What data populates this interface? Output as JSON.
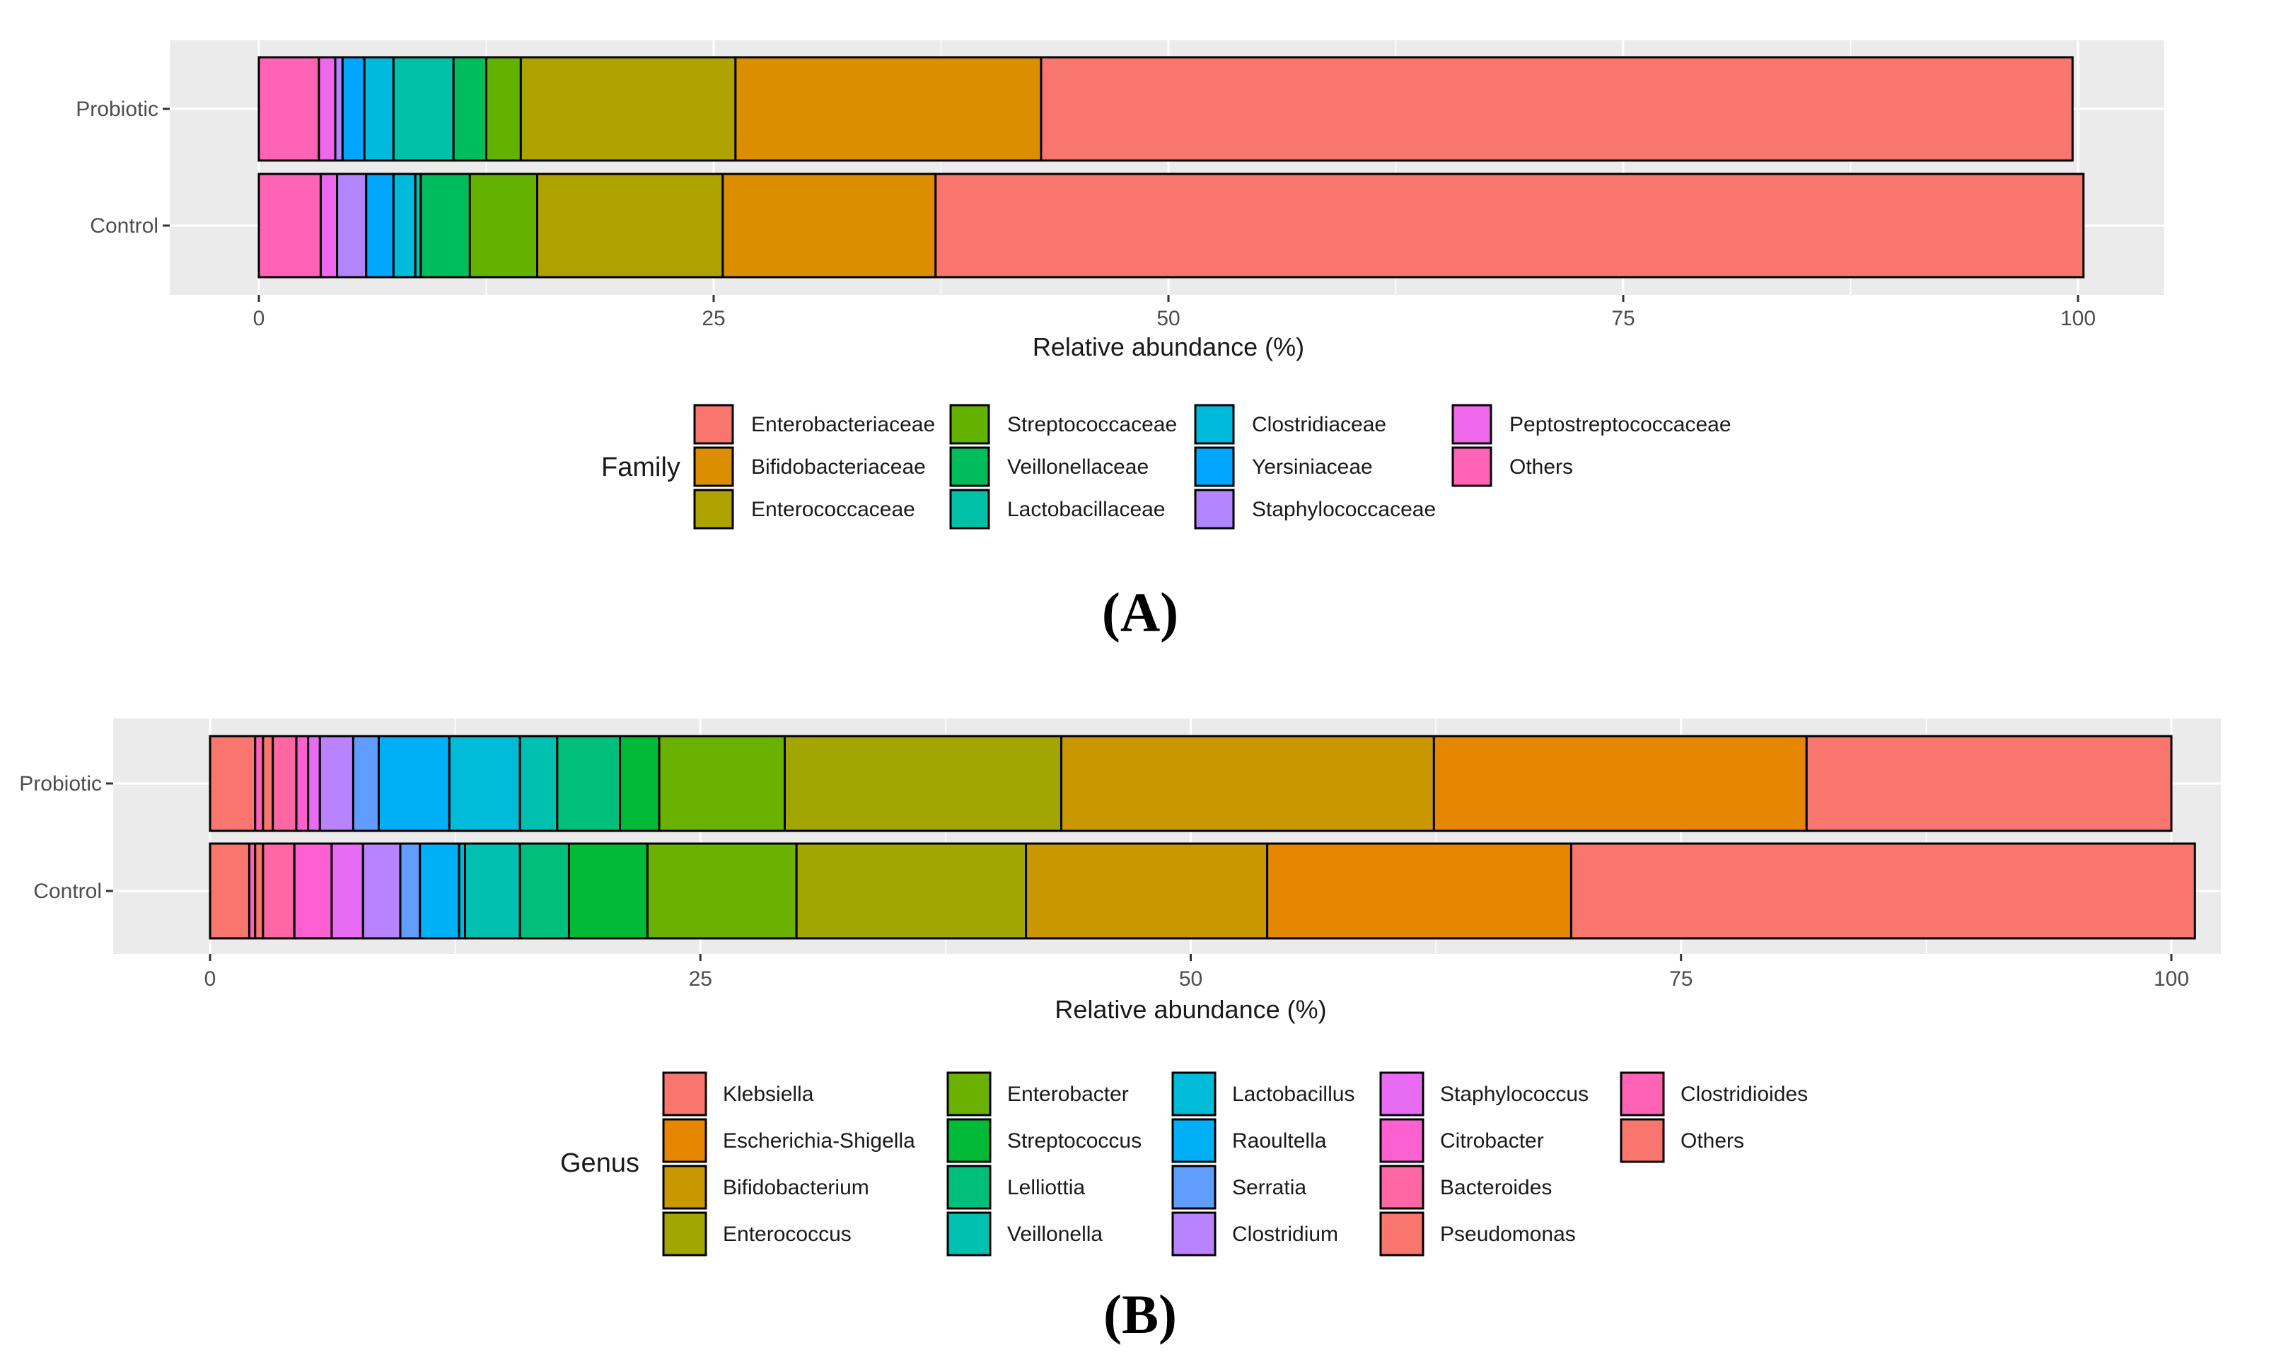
{
  "chart_data": [
    {
      "type": "bar",
      "orientation": "horizontal",
      "stacked": true,
      "panel_label": "(A)",
      "categories": [
        "Probiotic",
        "Control"
      ],
      "xlabel": "Relative abundance (%)",
      "ylabel": "",
      "xlim": [
        0,
        100
      ],
      "xticks": [
        "0",
        "25",
        "50",
        "75",
        "100"
      ],
      "grid": true,
      "legend_title": "Family",
      "legend_position": "bottom",
      "series": [
        {
          "name": "Enterobacteriaceae",
          "color": "#F8766D",
          "values": [
            56.7,
            63.1
          ]
        },
        {
          "name": "Bifidobacteriaceae",
          "color": "#DB8E00",
          "values": [
            16.8,
            11.7
          ]
        },
        {
          "name": "Enterococcaceae",
          "color": "#AEA200",
          "values": [
            11.8,
            10.2
          ]
        },
        {
          "name": "Streptococcaceae",
          "color": "#64B200",
          "values": [
            1.9,
            3.7
          ]
        },
        {
          "name": "Veillonellaceae",
          "color": "#00BD5C",
          "values": [
            1.8,
            2.7
          ]
        },
        {
          "name": "Lactobacillaceae",
          "color": "#00C1A7",
          "values": [
            3.3,
            0.3
          ]
        },
        {
          "name": "Clostridiaceae",
          "color": "#00BADE",
          "values": [
            1.6,
            1.2
          ]
        },
        {
          "name": "Yersiniaceae",
          "color": "#00A6FF",
          "values": [
            1.2,
            1.5
          ]
        },
        {
          "name": "Staphylococcaceae",
          "color": "#B385FF",
          "values": [
            0.4,
            1.6
          ]
        },
        {
          "name": "Peptostreptococcaceae",
          "color": "#EF67EB",
          "values": [
            0.9,
            0.9
          ]
        },
        {
          "name": "Others",
          "color": "#FF63B6",
          "values": [
            3.3,
            3.4
          ]
        }
      ]
    },
    {
      "type": "bar",
      "orientation": "horizontal",
      "stacked": true,
      "panel_label": "(B)",
      "categories": [
        "Probiotic",
        "Control"
      ],
      "xlabel": "Relative abundance (%)",
      "ylabel": "",
      "xlim": [
        0,
        100
      ],
      "xticks": [
        "0",
        "25",
        "50",
        "75",
        "100"
      ],
      "grid": true,
      "legend_title": "Genus",
      "legend_position": "bottom",
      "series": [
        {
          "name": "Klebsiella",
          "color": "#F8766D",
          "values": [
            18.6,
            31.8
          ]
        },
        {
          "name": "Escherichia-Shigella",
          "color": "#E58700",
          "values": [
            19.0,
            15.5
          ]
        },
        {
          "name": "Bifidobacterium",
          "color": "#C99800",
          "values": [
            19.0,
            12.3
          ]
        },
        {
          "name": "Enterococcus",
          "color": "#A3A500",
          "values": [
            14.1,
            11.7
          ]
        },
        {
          "name": "Enterobacter",
          "color": "#6BB100",
          "values": [
            6.4,
            7.6
          ]
        },
        {
          "name": "Streptococcus",
          "color": "#00BA38",
          "values": [
            2.0,
            4.0
          ]
        },
        {
          "name": "Lelliottia",
          "color": "#00BF7D",
          "values": [
            3.2,
            2.5
          ]
        },
        {
          "name": "Veillonella",
          "color": "#00C0AF",
          "values": [
            1.9,
            2.8
          ]
        },
        {
          "name": "Lactobacillus",
          "color": "#00BCD8",
          "values": [
            3.6,
            0.3
          ]
        },
        {
          "name": "Raoultella",
          "color": "#00B0F6",
          "values": [
            3.6,
            2.0
          ]
        },
        {
          "name": "Serratia",
          "color": "#619CFF",
          "values": [
            1.3,
            1.0
          ]
        },
        {
          "name": "Clostridium",
          "color": "#B983FF",
          "values": [
            1.7,
            1.9
          ]
        },
        {
          "name": "Staphylococcus",
          "color": "#E76BF3",
          "values": [
            0.6,
            1.6
          ]
        },
        {
          "name": "Citrobacter",
          "color": "#FD61D1",
          "values": [
            0.6,
            1.9
          ]
        },
        {
          "name": "Bacteroides",
          "color": "#FF67A4",
          "values": [
            1.2,
            1.6
          ]
        },
        {
          "name": "Pseudomonas",
          "color": "#F8766D",
          "values": [
            0.5,
            0.4
          ]
        },
        {
          "name": "Clostridioides",
          "color": "#FF63B6",
          "values": [
            0.4,
            0.3
          ]
        },
        {
          "name": "Others",
          "color": "#F8766D",
          "values": [
            2.3,
            2.0
          ]
        }
      ]
    }
  ]
}
